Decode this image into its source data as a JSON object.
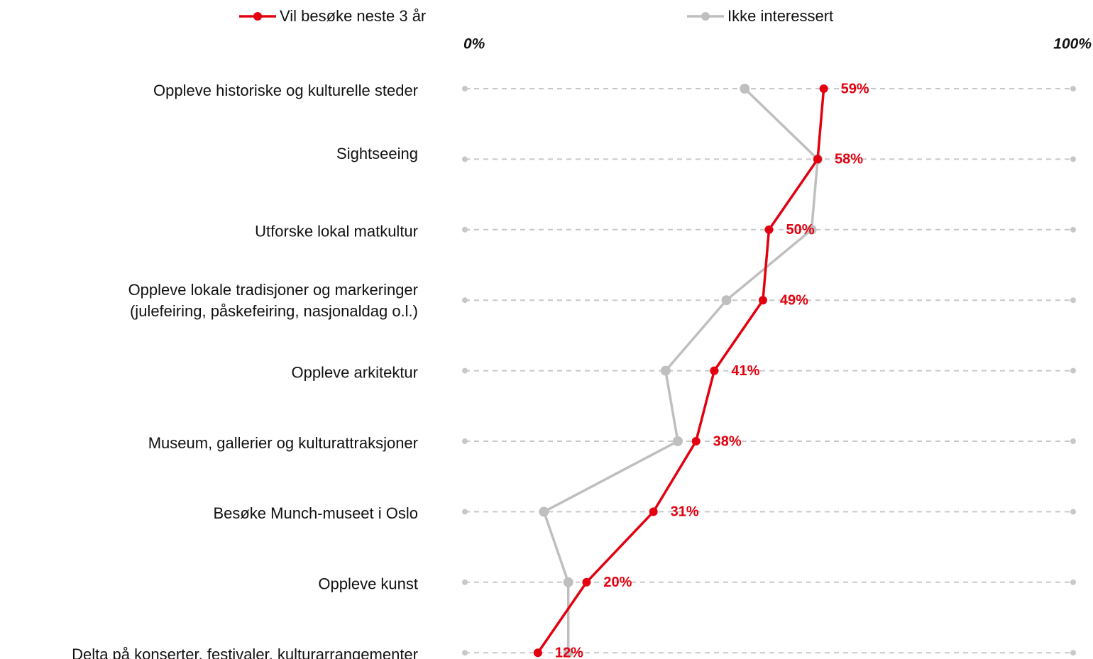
{
  "chart_data": {
    "type": "line",
    "orientation": "horizontal",
    "categories": [
      "Oppleve historiske og kulturelle steder",
      "Sightseeing",
      "Utforske lokal matkultur",
      [
        "Oppleve lokale tradisjoner og markeringer",
        "(julefeiring, påskefeiring, nasjonaldag o.l.)"
      ],
      "Oppleve arkitektur",
      "Museum, gallerier og kulturattraksjoner",
      "Besøke Munch-museet i Oslo",
      "Oppleve kunst",
      "Delta på konserter, festivaler, kulturarrangementer"
    ],
    "series": [
      {
        "name": "Vil besøke neste 3 år",
        "color": "#e3000f",
        "values": [
          59,
          58,
          50,
          49,
          41,
          38,
          31,
          20,
          12
        ],
        "value_labels": [
          "59%",
          "58%",
          "50%",
          "49%",
          "41%",
          "38%",
          "31%",
          "20%",
          "12%"
        ]
      },
      {
        "name": "Ikke interessert",
        "color": "#bfbfbf",
        "values": [
          46,
          58,
          57,
          43,
          33,
          35,
          13,
          17,
          17
        ]
      }
    ],
    "xlim": [
      0,
      100
    ],
    "xticks": [
      {
        "value": 0,
        "label": "0%"
      },
      {
        "value": 100,
        "label": "100%"
      }
    ],
    "legend": "top"
  }
}
